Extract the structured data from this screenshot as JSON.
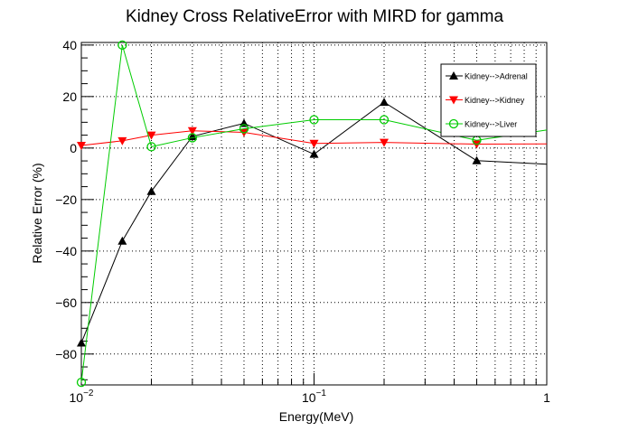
{
  "chart_data": {
    "type": "line",
    "title": "Kidney Cross RelativeError with MIRD for gamma",
    "xlabel": "Energy(MeV)",
    "ylabel": "Relative Error (%)",
    "x_scale": "log",
    "xlim": [
      0.01,
      1
    ],
    "ylim": [
      -92,
      41
    ],
    "x_ticks": [
      {
        "value": 0.01,
        "base": "10",
        "exp": "−2"
      },
      {
        "value": 0.1,
        "base": "10",
        "exp": "−1"
      },
      {
        "value": 1,
        "base": "1",
        "exp": ""
      }
    ],
    "y_ticks": [
      {
        "value": 40,
        "label": "40"
      },
      {
        "value": 20,
        "label": "20"
      },
      {
        "value": 0,
        "label": "0"
      },
      {
        "value": -20,
        "label": "−20"
      },
      {
        "value": -40,
        "label": "−40"
      },
      {
        "value": -60,
        "label": "−60"
      },
      {
        "value": -80,
        "label": "−80"
      }
    ],
    "grid": true,
    "legend_position": "top-right",
    "series": [
      {
        "name": "Kidney-->Adrenal",
        "color": "#000000",
        "marker": "triangle-up",
        "x": [
          0.01,
          0.015,
          0.02,
          0.03,
          0.05,
          0.1,
          0.2,
          0.5
        ],
        "y": [
          -75.7,
          -36.1,
          -16.8,
          4.5,
          9.6,
          -2.4,
          17.8,
          -4.9
        ],
        "tail": {
          "x": [
            0.5,
            1
          ],
          "y": [
            -4.9,
            -6.3
          ]
        }
      },
      {
        "name": "Kidney-->Kidney",
        "color": "#ff0000",
        "marker": "triangle-down",
        "x": [
          0.01,
          0.015,
          0.02,
          0.03,
          0.05,
          0.1,
          0.2,
          0.5
        ],
        "y": [
          1.0,
          2.8,
          5.0,
          6.7,
          6.1,
          1.8,
          2.2,
          1.5
        ],
        "tail": {
          "x": [
            0.5,
            1
          ],
          "y": [
            1.5,
            1.6
          ]
        }
      },
      {
        "name": "Kidney-->Liver",
        "color": "#00cc00",
        "marker": "circle-open",
        "x": [
          0.01,
          0.015,
          0.02,
          0.03,
          0.05,
          0.1,
          0.2,
          0.5
        ],
        "y": [
          -91.0,
          40.0,
          0.5,
          4.0,
          7.5,
          11.0,
          11.0,
          3.0
        ],
        "tail": {
          "x": [
            0.5,
            1
          ],
          "y": [
            3.0,
            7.0
          ]
        }
      }
    ]
  }
}
